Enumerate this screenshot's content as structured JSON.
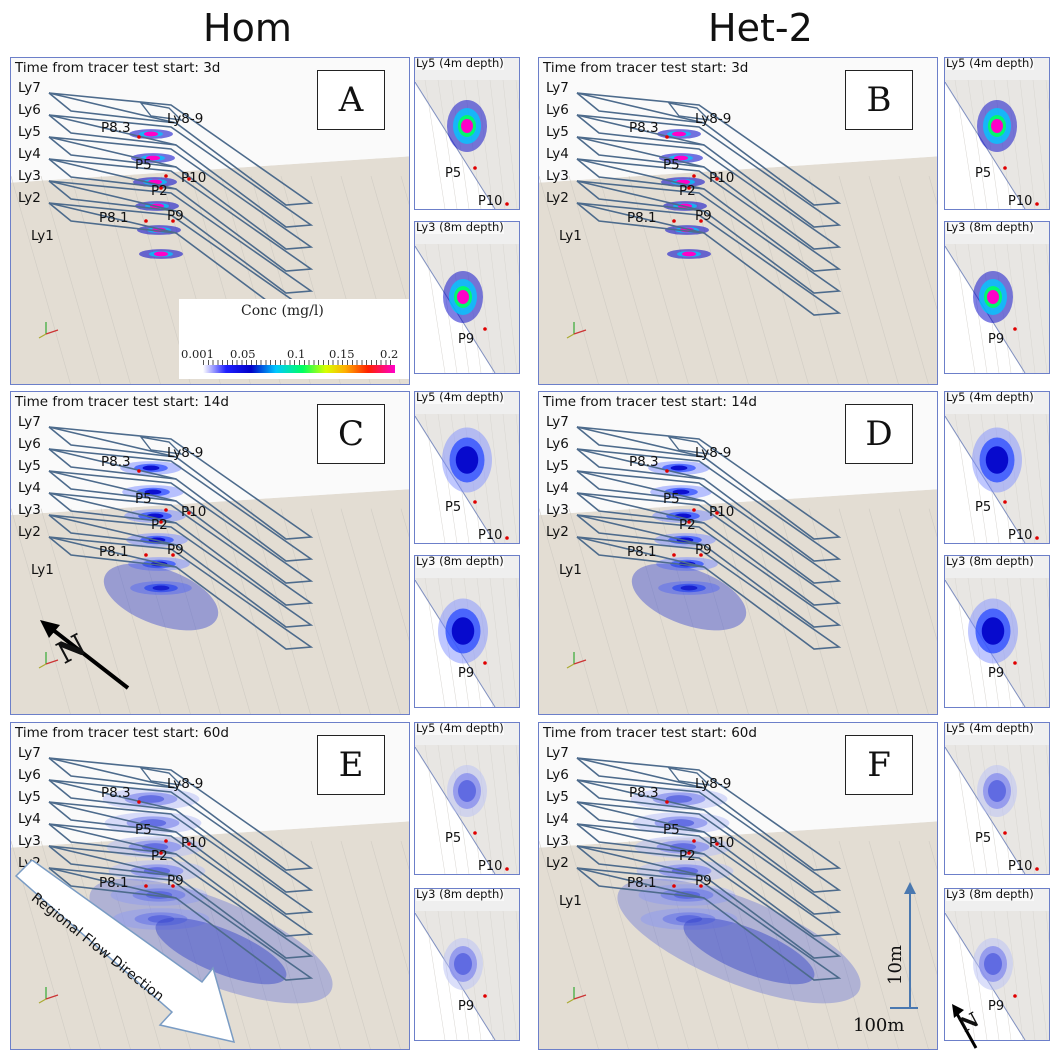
{
  "columns": {
    "left": "Hom",
    "right": "Het-2"
  },
  "panels": [
    {
      "letter": "A",
      "time": "Time from tracer test start: 3d"
    },
    {
      "letter": "B",
      "time": "Time from tracer test start: 3d"
    },
    {
      "letter": "C",
      "time": "Time from tracer test start: 14d"
    },
    {
      "letter": "D",
      "time": "Time from tracer test start: 14d"
    },
    {
      "letter": "E",
      "time": "Time from tracer test start: 60d"
    },
    {
      "letter": "F",
      "time": "Time from tracer test start: 60d"
    }
  ],
  "layers": {
    "ly7": "Ly7",
    "ly6": "Ly6",
    "ly5": "Ly5",
    "ly4": "Ly4",
    "ly3": "Ly3",
    "ly2": "Ly2",
    "ly1": "Ly1",
    "ly89": "Ly8-9"
  },
  "wells": {
    "p83": "P8.3",
    "p5": "P5",
    "p2": "P2",
    "p10": "P10",
    "p81": "P8.1",
    "p9": "P9"
  },
  "insets": {
    "top": "Ly5 (4m depth)",
    "bottom": "Ly3 (8m depth)"
  },
  "colorbar": {
    "title": "Conc (mg/l)",
    "ticks": [
      "0.001",
      "0.05",
      "0.1",
      "0.15",
      "0.2"
    ],
    "colors": [
      "#ffffff",
      "#0000c8",
      "#00c8ff",
      "#00ff60",
      "#ffb000",
      "#ff2000",
      "#ff00c8"
    ]
  },
  "annotations": {
    "flow": "Regional Flow Direction",
    "north": "N",
    "scale_vertical": "10m",
    "scale_horizontal": "100m"
  }
}
